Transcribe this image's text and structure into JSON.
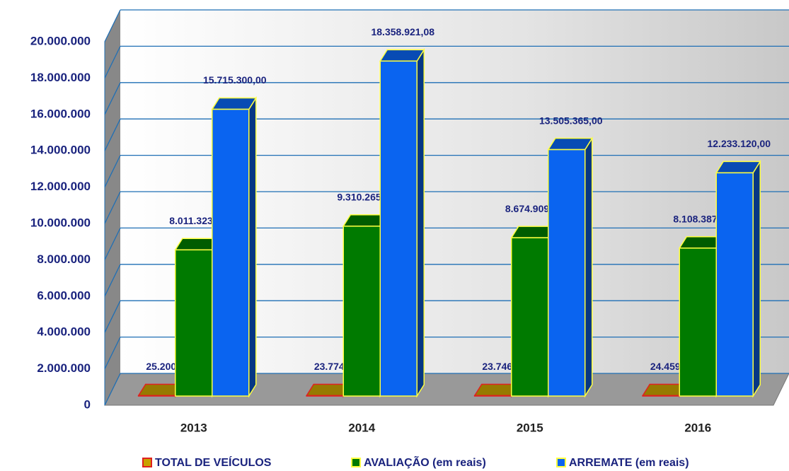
{
  "chart_data": {
    "type": "bar3d",
    "categories": [
      "2013",
      "2014",
      "2015",
      "2016"
    ],
    "series": [
      {
        "name": "TOTAL DE VEÍCULOS",
        "color": "#c8a200",
        "values": [
          25200,
          23774,
          23746,
          24459
        ],
        "value_labels": [
          "25.200",
          "23.774",
          "23.746",
          "24.459"
        ]
      },
      {
        "name": "AVALIAÇÃO (em reais)",
        "color": "#007a00",
        "values": [
          8011323,
          9310265.6,
          8674909,
          8108387
        ],
        "value_labels": [
          "8.011.323,00",
          "9.310.265,60",
          "8.674.909,00",
          "8.108.387,00"
        ]
      },
      {
        "name": "ARREMATE (em reais)",
        "color": "#0a64f0",
        "values": [
          15715300,
          18358921.08,
          13505365,
          12233120
        ],
        "value_labels": [
          "15.715.300,00",
          "18.358.921,08",
          "13.505.365,00",
          "12.233.120,00"
        ]
      }
    ],
    "ylim": [
      0,
      20000000
    ],
    "yticks": [
      0,
      {
        "value": 2000000,
        "label": "2.000.000"
      },
      {
        "value": 4000000,
        "label": "4.000.000"
      },
      {
        "value": 6000000,
        "label": "6.000.000"
      },
      {
        "value": 8000000,
        "label": "8.000.000"
      },
      {
        "value": 10000000,
        "label": "10.000.000"
      },
      {
        "value": 12000000,
        "label": "12.000.000"
      },
      {
        "value": 14000000,
        "label": "14.000.000"
      },
      {
        "value": 16000000,
        "label": "16.000.000"
      },
      {
        "value": 18000000,
        "label": "18.000.000"
      },
      {
        "value": 20000000,
        "label": "20.000.000"
      }
    ],
    "grid": true,
    "legend": "bottom"
  }
}
